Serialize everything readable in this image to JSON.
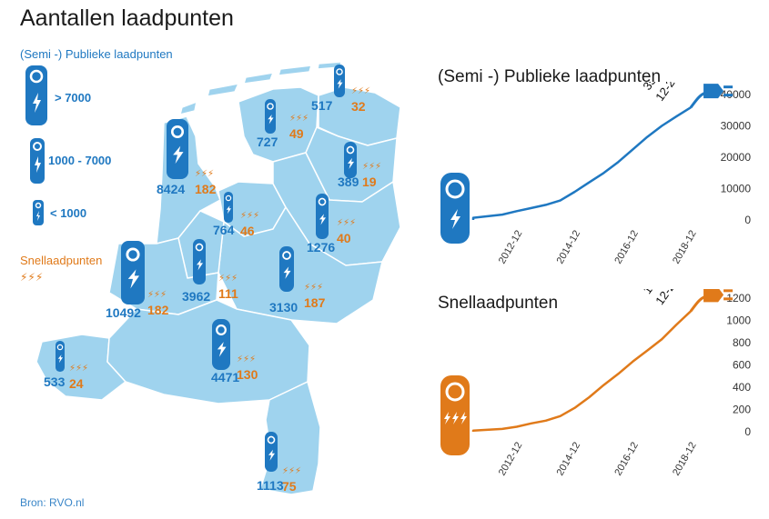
{
  "title": "Aantallen laadpunten",
  "legend": {
    "public_heading": "(Semi -) Publieke laadpunten",
    "size_large": "> 7000",
    "size_medium": "1000 - 7000",
    "size_small": "< 1000",
    "fast_heading": "Snellaadpunten",
    "fast_symbol": "⚡⚡⚡"
  },
  "source": "Bron: RVO.nl",
  "colors": {
    "public": "#1f78c1",
    "fast": "#e07a1a",
    "map_fill": "#9fd3ee",
    "map_border": "#ffffff"
  },
  "icons": {
    "public": "charging-pole-icon",
    "fast": "lightning-bolt-icon",
    "plug": "plug-icon"
  },
  "provinces": [
    {
      "public": "517",
      "fast": "32"
    },
    {
      "public": "727",
      "fast": "49"
    },
    {
      "public": "8424",
      "fast": "182"
    },
    {
      "public": "389",
      "fast": "19"
    },
    {
      "public": "764",
      "fast": "46"
    },
    {
      "public": "1276",
      "fast": "40"
    },
    {
      "public": "3962",
      "fast": "111"
    },
    {
      "public": "10492",
      "fast": "182"
    },
    {
      "public": "3130",
      "fast": "187"
    },
    {
      "public": "4471",
      "fast": "130"
    },
    {
      "public": "533",
      "fast": "24"
    },
    {
      "public": "1113",
      "fast": "75"
    }
  ],
  "chart_data": [
    {
      "type": "line",
      "title": "(Semi -) Publieke laadpunten",
      "x_ticks": [
        "2012-12",
        "2014-12",
        "2016-12",
        "2018-12"
      ],
      "y_ticks": [
        0,
        10000,
        20000,
        30000,
        40000
      ],
      "ylim": [
        0,
        40000
      ],
      "series": [
        {
          "x": [
            "2011-06",
            "2012-06",
            "2012-12",
            "2013-06",
            "2013-12",
            "2014-06",
            "2014-12",
            "2015-06",
            "2015-12",
            "2016-06",
            "2016-12",
            "2017-06",
            "2017-12",
            "2018-06",
            "2018-12"
          ],
          "values": [
            700,
            1700,
            2800,
            3800,
            4800,
            6200,
            9000,
            12000,
            15000,
            18500,
            22500,
            26500,
            30000,
            33000,
            35894
          ]
        }
      ],
      "annotation": {
        "value": "35894",
        "date": "12-2018"
      }
    },
    {
      "type": "line",
      "title": "Snellaadpunten",
      "x_ticks": [
        "2012-12",
        "2014-12",
        "2016-12",
        "2018-12"
      ],
      "y_ticks": [
        0,
        200,
        400,
        600,
        800,
        1000,
        1200
      ],
      "ylim": [
        0,
        1200
      ],
      "series": [
        {
          "x": [
            "2011-06",
            "2012-06",
            "2012-12",
            "2013-06",
            "2013-12",
            "2014-06",
            "2014-12",
            "2015-06",
            "2015-12",
            "2016-06",
            "2016-12",
            "2017-06",
            "2017-12",
            "2018-06",
            "2018-12"
          ],
          "values": [
            10,
            25,
            45,
            75,
            100,
            140,
            215,
            310,
            420,
            520,
            630,
            730,
            830,
            960,
            1083
          ]
        }
      ],
      "annotation": {
        "value": "1083",
        "date": "12-2018"
      }
    }
  ]
}
